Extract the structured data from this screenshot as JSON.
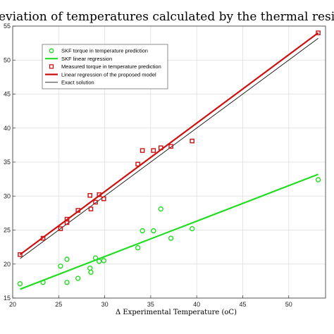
{
  "chart_data": {
    "type": "scatter",
    "title": "eviation of temperatures calculated by the thermal resistance m",
    "xlabel": "Δ Experimental Temperature (oC)",
    "ylabel": "",
    "xlim": [
      20,
      54
    ],
    "ylim": [
      15,
      55
    ],
    "xticks": [
      20,
      25,
      30,
      35,
      40,
      45,
      50
    ],
    "yticks": [
      15,
      20,
      25,
      30,
      35,
      40,
      45,
      50,
      55
    ],
    "grid": true,
    "legend_position": "top-left",
    "series": [
      {
        "name": "SKF torque in temperature prediction",
        "kind": "scatter",
        "marker": "circle",
        "color": "#22dd22",
        "points": [
          [
            20.8,
            17.1
          ],
          [
            23.3,
            17.3
          ],
          [
            25.2,
            19.7
          ],
          [
            25.9,
            20.7
          ],
          [
            25.9,
            17.3
          ],
          [
            27.1,
            17.9
          ],
          [
            28.4,
            19.4
          ],
          [
            28.5,
            18.8
          ],
          [
            29.0,
            20.9
          ],
          [
            29.4,
            20.4
          ],
          [
            29.9,
            20.5
          ],
          [
            33.6,
            22.4
          ],
          [
            34.1,
            24.9
          ],
          [
            35.3,
            24.9
          ],
          [
            36.1,
            28.1
          ],
          [
            37.2,
            23.8
          ],
          [
            39.5,
            25.2
          ],
          [
            53.2,
            32.4
          ]
        ]
      },
      {
        "name": "SKF linear regression",
        "kind": "line",
        "color": "#22dd22",
        "points": [
          [
            20.8,
            16.3
          ],
          [
            53.2,
            33.2
          ]
        ]
      },
      {
        "name": "Measured torque in temperature prediction",
        "kind": "scatter",
        "marker": "square",
        "color": "#cc1111",
        "points": [
          [
            20.8,
            21.4
          ],
          [
            23.3,
            23.8
          ],
          [
            25.2,
            25.2
          ],
          [
            25.9,
            26.1
          ],
          [
            25.9,
            26.6
          ],
          [
            27.1,
            27.9
          ],
          [
            28.4,
            30.1
          ],
          [
            28.5,
            28.1
          ],
          [
            29.0,
            29.1
          ],
          [
            29.4,
            30.2
          ],
          [
            29.9,
            29.6
          ],
          [
            33.6,
            34.7
          ],
          [
            34.1,
            36.7
          ],
          [
            35.3,
            36.7
          ],
          [
            36.1,
            37.1
          ],
          [
            37.2,
            37.3
          ],
          [
            39.5,
            38.1
          ],
          [
            53.2,
            54.0
          ]
        ]
      },
      {
        "name": "Linear regression of the proposed model",
        "kind": "line",
        "color": "#cc1111",
        "points": [
          [
            20.8,
            21.4
          ],
          [
            53.2,
            54.0
          ]
        ]
      },
      {
        "name": "Exact solution",
        "kind": "line",
        "color": "#111111",
        "points": [
          [
            20.8,
            20.8
          ],
          [
            53.2,
            53.2
          ]
        ]
      }
    ]
  }
}
